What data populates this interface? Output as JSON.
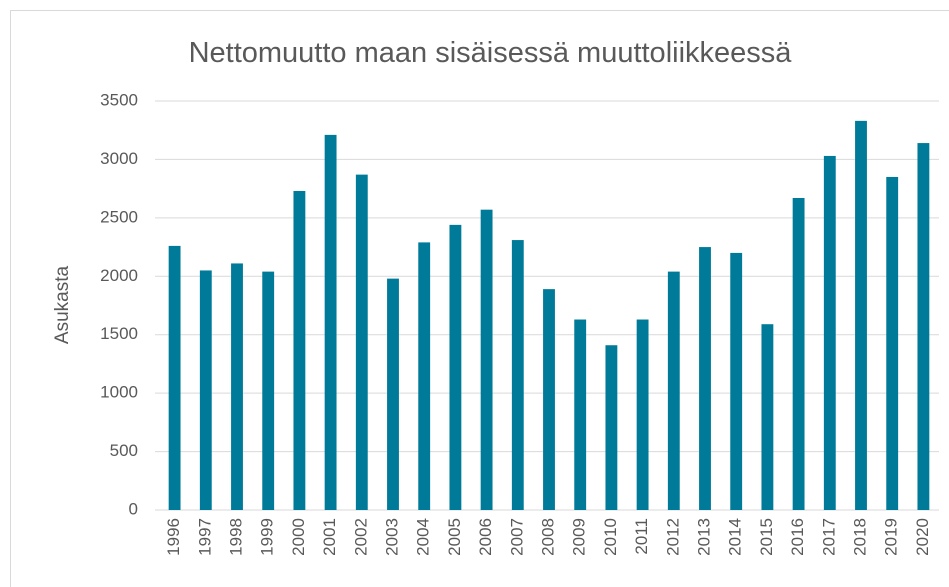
{
  "chart_data": {
    "type": "bar",
    "title": "Nettomuutto maan sisäisessä muuttoliikkeessä",
    "y_label": "Asukasta",
    "categories": [
      "1996",
      "1997",
      "1998",
      "1999",
      "2000",
      "2001",
      "2002",
      "2003",
      "2004",
      "2005",
      "2006",
      "2007",
      "2008",
      "2009",
      "2010",
      "2011",
      "2012",
      "2013",
      "2014",
      "2015",
      "2016",
      "2017",
      "2018",
      "2019",
      "2020"
    ],
    "values": [
      2260,
      2050,
      2110,
      2040,
      2730,
      3210,
      2870,
      1980,
      2290,
      2440,
      2570,
      2310,
      1890,
      1630,
      1410,
      1630,
      2040,
      2250,
      2200,
      1590,
      2670,
      3030,
      3330,
      2850,
      3140
    ],
    "color": "#007a99",
    "ylim": [
      0,
      3500
    ],
    "yticks": [
      0,
      500,
      1000,
      1500,
      2000,
      2500,
      3000,
      3500
    ],
    "grid": true
  }
}
